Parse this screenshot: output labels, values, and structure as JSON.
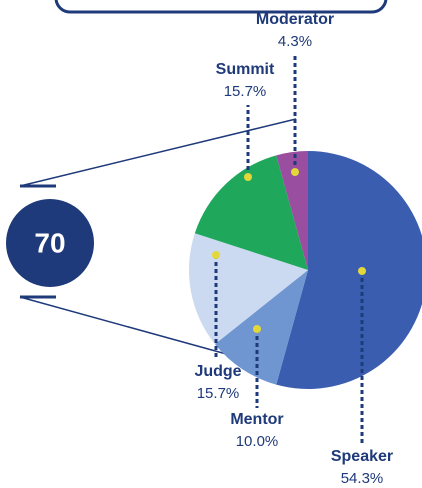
{
  "chart_data": {
    "type": "pie",
    "total": 70,
    "categories": [
      "Speaker",
      "Mentor",
      "Judge",
      "Summit",
      "Moderator"
    ],
    "values": [
      54.3,
      10.0,
      15.7,
      15.7,
      4.3
    ],
    "value_labels": [
      "54.3%",
      "10.0%",
      "15.7%",
      "15.7%",
      "4.3%"
    ],
    "colors": [
      "#3a5db0",
      "#6f96d1",
      "#ccdaf1",
      "#1fa75c",
      "#9a4e9f"
    ]
  }
}
